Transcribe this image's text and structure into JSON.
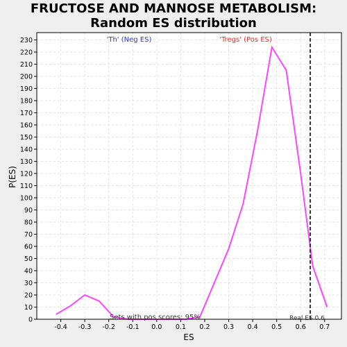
{
  "title_line1": "FRUCTOSE AND MANNOSE METABOLISM:",
  "title_line2": "Random ES distribution",
  "annotations": {
    "neg_label": "'Th' (Neg ES)",
    "pos_label": "'Tregs' (Pos ES)",
    "pos_scores": "Sets with pos scores: 95%",
    "real_es": "Real ES 0.6"
  },
  "colors": {
    "line": "#ff44ff",
    "neg_label": "#3333cc",
    "pos_label": "#dd3333",
    "real_es_line": "#333333"
  },
  "chart_data": {
    "type": "line",
    "xlabel": "ES",
    "ylabel": "P(ES)",
    "xlim": [
      -0.5,
      0.77
    ],
    "ylim": [
      0,
      236
    ],
    "x_ticks": [
      -0.4,
      -0.3,
      -0.2,
      -0.1,
      0.0,
      0.1,
      0.2,
      0.3,
      0.4,
      0.5,
      0.6,
      0.7
    ],
    "y_ticks": [
      0,
      10,
      20,
      30,
      40,
      50,
      60,
      70,
      80,
      90,
      100,
      110,
      120,
      130,
      140,
      150,
      160,
      170,
      180,
      190,
      200,
      210,
      220,
      230
    ],
    "grid": true,
    "real_es": 0.64,
    "series": [
      {
        "x": [
          -0.42,
          -0.36,
          -0.3,
          -0.24,
          -0.18,
          -0.12,
          -0.06,
          0.0,
          0.06,
          0.12,
          0.18,
          0.24,
          0.3,
          0.36,
          0.42,
          0.48,
          0.54,
          0.6,
          0.65,
          0.71
        ],
        "y": [
          4,
          11,
          20,
          15,
          2,
          0,
          0,
          0,
          0,
          0,
          2,
          30,
          58,
          95,
          155,
          224,
          205,
          120,
          44,
          10
        ]
      }
    ]
  }
}
